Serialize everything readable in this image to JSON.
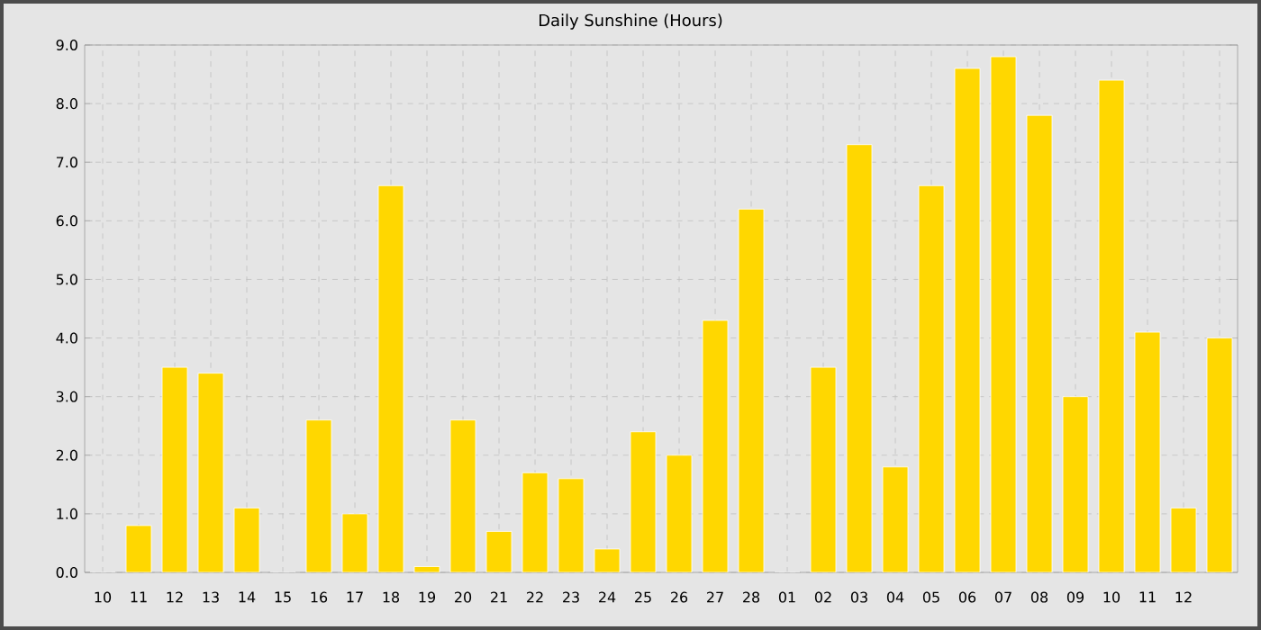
{
  "chart_data": {
    "type": "bar",
    "title": "Daily Sunshine (Hours)",
    "categories": [
      "10",
      "11",
      "12",
      "13",
      "14",
      "15",
      "16",
      "17",
      "18",
      "19",
      "20",
      "21",
      "22",
      "23",
      "24",
      "25",
      "26",
      "27",
      "28",
      "01",
      "02",
      "03",
      "04",
      "05",
      "06",
      "07",
      "08",
      "09",
      "10",
      "11",
      "12",
      null
    ],
    "values": [
      0,
      0.8,
      3.5,
      3.4,
      1.1,
      0,
      2.6,
      1.0,
      6.6,
      0.1,
      2.6,
      0.7,
      1.7,
      1.6,
      0.4,
      2.4,
      2.0,
      4.3,
      6.2,
      0,
      3.5,
      7.3,
      1.8,
      6.6,
      8.6,
      8.8,
      7.8,
      3.0,
      8.4,
      4.1,
      1.1,
      4.0
    ],
    "color": "#ffd700",
    "ylim": [
      0,
      9
    ],
    "yticks": [
      {
        "value": 0,
        "label": "0.0"
      },
      {
        "value": 1,
        "label": "1.0"
      },
      {
        "value": 2,
        "label": "2.0"
      },
      {
        "value": 3,
        "label": "3.0"
      },
      {
        "value": 4,
        "label": "4.0"
      },
      {
        "value": 5,
        "label": "5.0"
      },
      {
        "value": 6,
        "label": "6.0"
      },
      {
        "value": 7,
        "label": "7.0"
      },
      {
        "value": 8,
        "label": "8.0"
      },
      {
        "value": 9,
        "label": "9.0"
      }
    ],
    "grid": true
  }
}
